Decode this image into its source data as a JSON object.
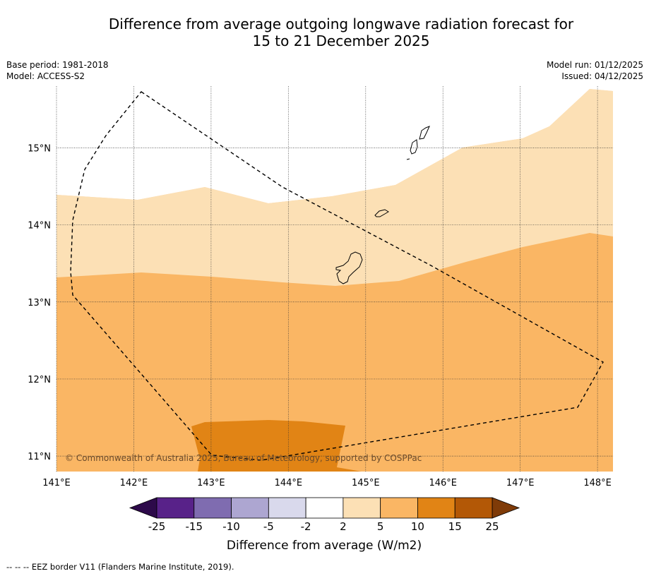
{
  "title": {
    "line1": "Difference from average outgoing longwave radiation forecast for",
    "line2": "15 to 21 December 2025"
  },
  "meta": {
    "base_period": "Base period: 1981-2018",
    "model": "Model: ACCESS-S2",
    "model_run": "Model run: 01/12/2025",
    "issued": "Issued: 04/12/2025"
  },
  "map": {
    "lon_range": [
      141.0,
      148.2
    ],
    "lat_range": [
      10.8,
      15.8
    ],
    "lon_ticks": [
      "141°E",
      "142°E",
      "143°E",
      "144°E",
      "145°E",
      "146°E",
      "147°E",
      "148°E"
    ],
    "lat_ticks": [
      "15°N",
      "14°N",
      "13°N",
      "12°N",
      "11°N"
    ],
    "copyright": "© Commonwealth of Australia 2025, Bureau of Meteorology, supported by COSPPac",
    "colors": {
      "band_2_5": "#fce0b5",
      "band_5_10": "#fab664",
      "band_10_15": "#e18415",
      "eez_border": "#000000"
    },
    "regions": [
      {
        "name": "2 to 5 W/m2 anomaly",
        "color": "#fce0b5"
      },
      {
        "name": "5 to 10 W/m2 anomaly",
        "color": "#fab664"
      },
      {
        "name": "10 to 15 W/m2 anomaly",
        "color": "#e18415"
      }
    ]
  },
  "colorbar": {
    "labels": [
      "-25",
      "-15",
      "-10",
      "-5",
      "-2",
      "2",
      "5",
      "10",
      "15",
      "25"
    ],
    "colors": [
      "#2d0a4a",
      "#582289",
      "#7f6cb0",
      "#ada6d1",
      "#d9d9ec",
      "#ffffff",
      "#fce0b5",
      "#fab664",
      "#e18415",
      "#b35806",
      "#7f3b08"
    ],
    "title": "Difference from average (W/m2)"
  },
  "footnote": "--  --  -- EEZ border V11 (Flanders Marine Institute, 2019)."
}
